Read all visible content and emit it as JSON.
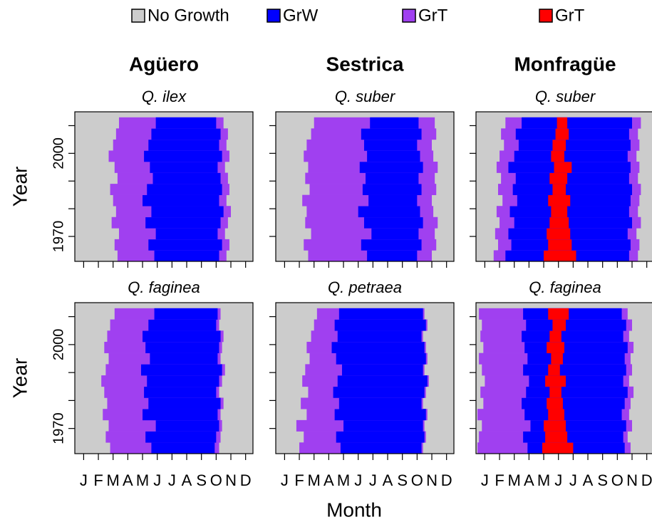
{
  "chart_data": {
    "type": "phenology",
    "series": [
      {
        "name": "No Growth",
        "color": "#cccccc"
      },
      {
        "name": "GrW",
        "color": "#0000ff"
      },
      {
        "name": "GrT",
        "color": "#a040f0"
      },
      {
        "name": "GrT",
        "color": "#ff0000"
      }
    ],
    "columns": [
      "Agüero",
      "Sestrica",
      "Monfragüe"
    ],
    "x_label": "Month",
    "y_label": "Year",
    "xlim": [
      0.4,
      12.5
    ],
    "xticks": [
      {
        "value": 1,
        "label": "J"
      },
      {
        "value": 2,
        "label": "F"
      },
      {
        "value": 3,
        "label": "M"
      },
      {
        "value": 4,
        "label": "A"
      },
      {
        "value": 5,
        "label": "M"
      },
      {
        "value": 6,
        "label": "J"
      },
      {
        "value": 7,
        "label": "J"
      },
      {
        "value": 8,
        "label": "A"
      },
      {
        "value": 9,
        "label": "S"
      },
      {
        "value": 10,
        "label": "O"
      },
      {
        "value": 11,
        "label": "N"
      },
      {
        "value": 12,
        "label": "D"
      }
    ],
    "ylim": [
      1961,
      2015
    ],
    "yticks": [
      1970,
      {
        "value": 1980,
        "label": null
      },
      {
        "value": 1990,
        "label": null
      },
      2000,
      {
        "value": 2010,
        "label": null
      }
    ],
    "years": [
      1961,
      1965,
      1969,
      1973,
      1977,
      1981,
      1985,
      1989,
      1993,
      1997,
      2001,
      2005,
      2009
    ],
    "panels": [
      {
        "species": "Q. ilex",
        "species_color": "#1a9a1a",
        "grt_start": [
          3.3,
          3.1,
          3.4,
          2.9,
          3.2,
          3.0,
          2.8,
          3.3,
          3.1,
          2.7,
          3.0,
          3.2,
          3.4
        ],
        "grw_start": [
          5.8,
          5.4,
          5.9,
          5.2,
          5.6,
          5.0,
          5.3,
          5.7,
          5.5,
          5.1,
          5.4,
          5.6,
          5.9
        ],
        "grw_end": [
          10.2,
          10.4,
          10.1,
          10.3,
          10.5,
          10.2,
          10.4,
          10.3,
          10.1,
          10.4,
          10.2,
          10.3,
          10.0
        ],
        "grt_end": [
          10.7,
          10.9,
          10.6,
          10.8,
          11.0,
          10.7,
          10.9,
          10.8,
          10.6,
          10.9,
          10.7,
          10.8,
          10.5
        ]
      },
      {
        "species": "Q. suber",
        "species_color": "#1a9a1a",
        "grt_start": [
          2.6,
          2.3,
          2.8,
          2.4,
          2.5,
          2.2,
          2.7,
          2.4,
          2.6,
          2.3,
          2.5,
          2.8,
          3.0
        ],
        "grw_start": [
          6.6,
          6.2,
          6.9,
          6.4,
          6.0,
          6.7,
          6.3,
          6.5,
          6.1,
          6.6,
          6.4,
          6.2,
          6.8
        ],
        "grw_end": [
          10.0,
          10.3,
          10.1,
          10.4,
          10.2,
          10.0,
          10.3,
          10.1,
          10.4,
          10.2,
          10.0,
          10.3,
          10.1
        ],
        "grt_end": [
          11.0,
          11.3,
          11.2,
          11.4,
          11.1,
          11.0,
          11.3,
          11.2,
          11.4,
          11.1,
          11.0,
          11.3,
          11.2
        ]
      },
      {
        "species": "Q. suber",
        "species_color": "#1a9a1a",
        "grt_start": [
          1.6,
          1.9,
          1.7,
          2.0,
          1.8,
          2.2,
          1.9,
          2.1,
          1.8,
          2.0,
          2.3,
          2.1,
          2.4
        ],
        "grw_start": [
          2.4,
          2.8,
          2.6,
          3.0,
          2.7,
          3.2,
          2.9,
          3.1,
          2.6,
          3.0,
          3.3,
          3.1,
          3.5
        ],
        "grw_end": [
          10.8,
          10.9,
          10.7,
          11.0,
          10.8,
          10.9,
          11.0,
          10.8,
          10.9,
          10.7,
          10.9,
          10.8,
          11.0
        ],
        "grt_end": [
          11.4,
          11.5,
          11.3,
          11.6,
          11.4,
          11.5,
          11.6,
          11.4,
          11.5,
          11.3,
          11.5,
          11.4,
          11.6
        ],
        "red_start": [
          5.0,
          5.3,
          5.2,
          5.4,
          5.5,
          5.3,
          5.6,
          5.4,
          5.7,
          5.5,
          5.6,
          5.8,
          5.9
        ],
        "red_end": [
          7.2,
          6.9,
          6.8,
          6.7,
          6.6,
          6.8,
          6.5,
          6.6,
          6.9,
          6.4,
          6.5,
          6.7,
          6.6
        ]
      },
      {
        "species": "Q. faginea",
        "species_color": "#7a3f10",
        "grt_start": [
          2.8,
          2.5,
          2.7,
          2.3,
          2.6,
          2.4,
          2.2,
          2.5,
          2.7,
          2.4,
          2.6,
          2.8,
          3.1
        ],
        "grw_start": [
          5.6,
          5.2,
          5.9,
          5.0,
          5.4,
          5.1,
          5.3,
          4.9,
          5.5,
          5.2,
          5.0,
          5.4,
          5.8
        ],
        "grw_end": [
          9.9,
          10.0,
          10.2,
          10.1,
          10.3,
          10.0,
          10.2,
          10.4,
          10.1,
          10.2,
          10.3,
          10.0,
          10.1
        ],
        "grt_end": [
          10.2,
          10.3,
          10.4,
          10.3,
          10.5,
          10.2,
          10.4,
          10.6,
          10.3,
          10.4,
          10.5,
          10.2,
          10.3
        ]
      },
      {
        "species": "Q. petraea",
        "species_color": "#7a3f10",
        "grt_start": [
          2.0,
          2.3,
          1.8,
          2.5,
          2.1,
          2.6,
          2.2,
          2.4,
          2.7,
          2.5,
          2.8,
          3.0,
          3.2
        ],
        "grw_start": [
          4.8,
          4.5,
          5.0,
          4.4,
          4.7,
          4.3,
          4.6,
          4.9,
          4.5,
          4.2,
          4.6,
          4.4,
          4.7
        ],
        "grw_end": [
          10.3,
          10.5,
          10.4,
          10.6,
          10.3,
          10.5,
          10.7,
          10.4,
          10.6,
          10.5,
          10.3,
          10.6,
          10.4
        ],
        "grt_end": [
          10.4,
          10.6,
          10.5,
          10.7,
          10.4,
          10.6,
          10.8,
          10.5,
          10.7,
          10.6,
          10.4,
          10.7,
          10.5
        ]
      },
      {
        "species": "Q. faginea",
        "species_color": "#7a3f10",
        "grt_start": [
          0.5,
          0.6,
          0.8,
          0.5,
          0.9,
          0.7,
          1.0,
          0.8,
          0.6,
          0.9,
          0.7,
          0.8,
          0.6
        ],
        "grw_start": [
          3.9,
          3.6,
          4.1,
          3.7,
          3.5,
          3.8,
          4.0,
          3.6,
          3.9,
          3.7,
          3.5,
          3.8,
          3.6
        ],
        "grw_end": [
          10.5,
          10.4,
          10.6,
          10.3,
          10.5,
          10.7,
          10.4,
          10.6,
          10.5,
          10.7,
          10.4,
          10.6,
          10.3
        ],
        "grt_end": [
          10.9,
          10.7,
          11.0,
          10.8,
          10.9,
          11.1,
          10.8,
          11.0,
          10.9,
          11.1,
          10.8,
          11.0,
          10.7
        ],
        "red_start": [
          4.9,
          5.1,
          5.0,
          5.3,
          5.2,
          5.4,
          5.1,
          5.3,
          5.5,
          5.2,
          5.4,
          5.6,
          5.3
        ],
        "red_end": [
          7.0,
          6.6,
          6.5,
          6.4,
          6.3,
          6.2,
          6.5,
          6.1,
          6.3,
          6.4,
          6.2,
          6.5,
          6.7
        ]
      }
    ]
  }
}
